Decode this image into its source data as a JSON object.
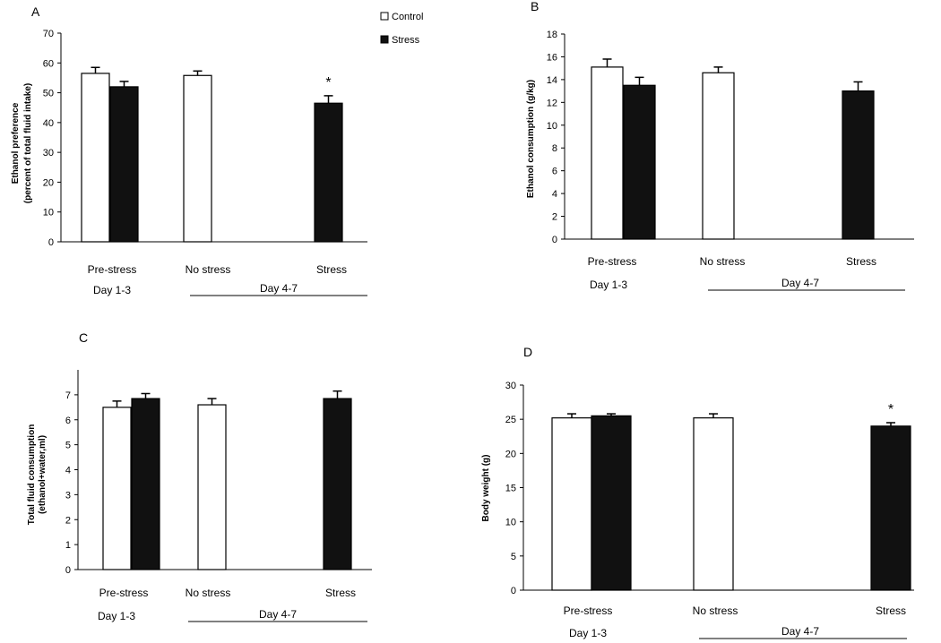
{
  "legend": [
    {
      "label": "Control",
      "color": "#ffffff"
    },
    {
      "label": "Stress",
      "color": "#111111"
    }
  ],
  "chart_data": [
    {
      "type": "bar",
      "panel": "A",
      "ylabel_lines": [
        "Ethanol preference",
        "(percent of total fluid intake)"
      ],
      "ylim": [
        0,
        70
      ],
      "yticks": [
        0,
        10,
        20,
        30,
        40,
        50,
        60,
        70
      ],
      "categories": [
        "Pre-stress",
        "No stress",
        "Stress"
      ],
      "groups": [
        {
          "label": "Day 1-3"
        },
        {
          "label": "Day 4-7"
        }
      ],
      "series": [
        {
          "name": "Control",
          "values": [
            56.5,
            55.8,
            null
          ],
          "errors": [
            2.0,
            1.5,
            null
          ]
        },
        {
          "name": "Stress",
          "values": [
            52.0,
            null,
            46.5
          ],
          "errors": [
            1.8,
            null,
            2.5
          ]
        }
      ],
      "annotations": [
        {
          "text": "*",
          "category": "Stress",
          "series": "Stress"
        }
      ]
    },
    {
      "type": "bar",
      "panel": "B",
      "ylabel_lines": [
        "Ethanol consumption (g/kg)"
      ],
      "ylim": [
        0,
        18
      ],
      "yticks": [
        0,
        2,
        4,
        6,
        8,
        10,
        12,
        14,
        16,
        18
      ],
      "categories": [
        "Pre-stress",
        "No stress",
        "Stress"
      ],
      "groups": [
        {
          "label": "Day 1-3"
        },
        {
          "label": "Day 4-7"
        }
      ],
      "series": [
        {
          "name": "Control",
          "values": [
            15.1,
            14.6,
            null
          ],
          "errors": [
            0.7,
            0.5,
            null
          ]
        },
        {
          "name": "Stress",
          "values": [
            13.5,
            null,
            13.0
          ],
          "errors": [
            0.7,
            null,
            0.8
          ]
        }
      ],
      "annotations": []
    },
    {
      "type": "bar",
      "panel": "C",
      "ylabel_lines": [
        "Total fluid consumption",
        "(ethanol+water,ml)"
      ],
      "ylim": [
        0,
        8
      ],
      "yticks": [
        0,
        1,
        2,
        3,
        4,
        5,
        6,
        7
      ],
      "categories": [
        "Pre-stress",
        "No stress",
        "Stress"
      ],
      "groups": [
        {
          "label": "Day 1-3"
        },
        {
          "label": "Day 4-7"
        }
      ],
      "series": [
        {
          "name": "Control",
          "values": [
            6.5,
            6.6,
            null
          ],
          "errors": [
            0.25,
            0.25,
            null
          ]
        },
        {
          "name": "Stress",
          "values": [
            6.85,
            null,
            6.85
          ],
          "errors": [
            0.2,
            null,
            0.3
          ]
        }
      ],
      "annotations": []
    },
    {
      "type": "bar",
      "panel": "D",
      "ylabel_lines": [
        "Body weight (g)"
      ],
      "ylim": [
        0,
        30
      ],
      "yticks": [
        0,
        5,
        10,
        15,
        20,
        25,
        30
      ],
      "categories": [
        "Pre-stress",
        "No stress",
        "Stress"
      ],
      "groups": [
        {
          "label": "Day 1-3"
        },
        {
          "label": "Day 4-7"
        }
      ],
      "series": [
        {
          "name": "Control",
          "values": [
            25.2,
            25.2,
            null
          ],
          "errors": [
            0.6,
            0.6,
            null
          ]
        },
        {
          "name": "Stress",
          "values": [
            25.5,
            null,
            24.0
          ],
          "errors": [
            0.3,
            null,
            0.5
          ]
        }
      ],
      "annotations": [
        {
          "text": "*",
          "category": "Stress",
          "series": "Stress"
        }
      ]
    }
  ]
}
